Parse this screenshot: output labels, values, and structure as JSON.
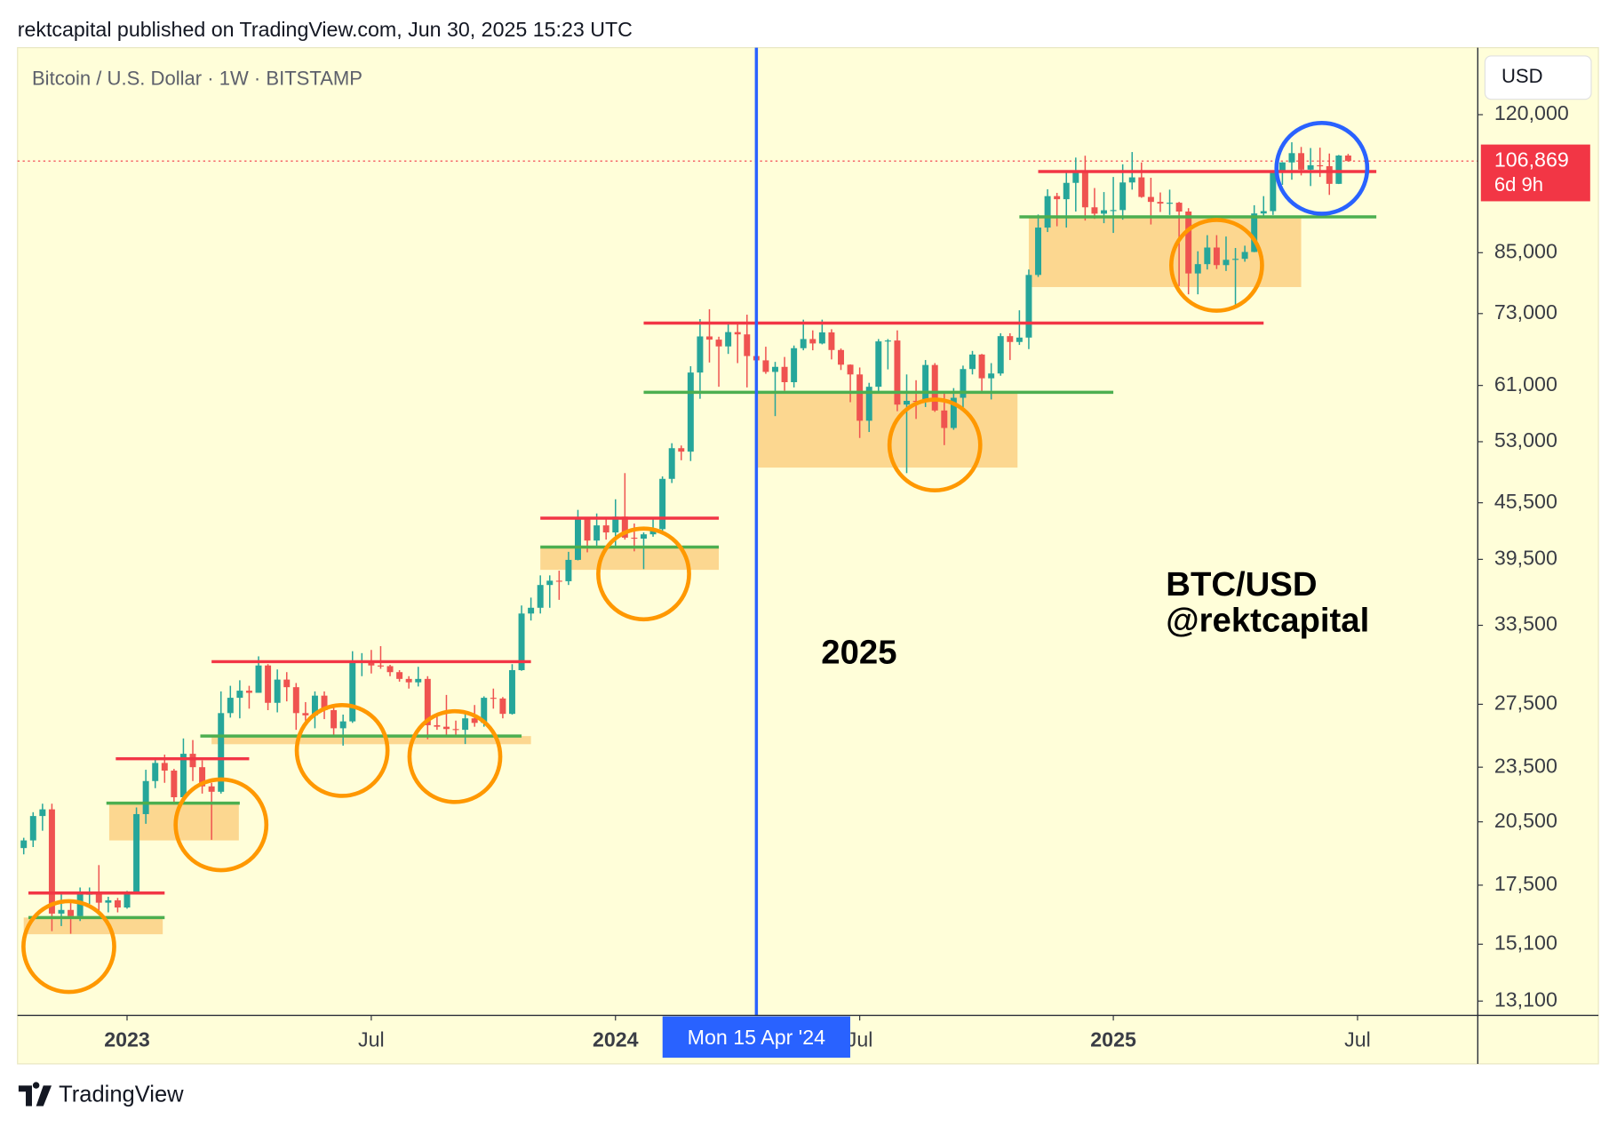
{
  "header": {
    "text": "rektcapital published on TradingView.com, Jun 30, 2025 15:23 UTC"
  },
  "footer": {
    "brand": "TradingView"
  },
  "chart_data": {
    "type": "candlestick",
    "title": "Bitcoin / U.S. Dollar · 1W · BITSTAMP",
    "currency": "USD",
    "log_scale": true,
    "up_color": "#26a69a",
    "down_color": "#ef5350",
    "candles": [
      [
        19200,
        19700,
        18900,
        19570
      ],
      [
        19570,
        21000,
        19250,
        20800
      ],
      [
        20800,
        21450,
        20050,
        21150
      ],
      [
        21150,
        21450,
        15600,
        16300
      ],
      [
        16300,
        17200,
        15800,
        16450
      ],
      [
        16450,
        16800,
        15500,
        16200
      ],
      [
        16200,
        17400,
        16000,
        17100
      ],
      [
        17100,
        17400,
        16700,
        17130
      ],
      [
        17130,
        18400,
        16300,
        16750
      ],
      [
        16750,
        17000,
        16350,
        16850
      ],
      [
        16850,
        16950,
        16350,
        16550
      ],
      [
        16550,
        17250,
        16500,
        17150
      ],
      [
        17150,
        21250,
        17100,
        20900
      ],
      [
        20900,
        23350,
        20400,
        22700
      ],
      [
        22700,
        23950,
        22300,
        23750
      ],
      [
        23750,
        24250,
        22600,
        23300
      ],
      [
        23300,
        23400,
        21400,
        21800
      ],
      [
        21800,
        25250,
        21550,
        24300
      ],
      [
        24300,
        25150,
        22700,
        23500
      ],
      [
        23500,
        23900,
        22000,
        22400
      ],
      [
        22400,
        22600,
        19600,
        22100
      ],
      [
        22100,
        28400,
        22000,
        26900
      ],
      [
        26900,
        28800,
        26600,
        27950
      ],
      [
        27950,
        29200,
        26550,
        28450
      ],
      [
        28450,
        28800,
        27200,
        28300
      ],
      [
        28300,
        31000,
        28300,
        30300
      ],
      [
        30300,
        30400,
        27100,
        27600
      ],
      [
        27600,
        30000,
        26950,
        29250
      ],
      [
        29250,
        29800,
        27700,
        28700
      ],
      [
        28700,
        29000,
        25800,
        26900
      ],
      [
        26900,
        27650,
        26400,
        26750
      ],
      [
        26750,
        28400,
        25900,
        28100
      ],
      [
        28100,
        28400,
        26500,
        27100
      ],
      [
        27100,
        27400,
        25400,
        25900
      ],
      [
        25900,
        26800,
        24800,
        26350
      ],
      [
        26350,
        31400,
        26250,
        30500
      ],
      [
        30500,
        31250,
        29500,
        30600
      ],
      [
        30600,
        31500,
        29700,
        30300
      ],
      [
        30300,
        31800,
        30050,
        30250
      ],
      [
        30250,
        30350,
        29500,
        29800
      ],
      [
        29800,
        29950,
        29100,
        29300
      ],
      [
        29300,
        29500,
        28600,
        29050
      ],
      [
        29050,
        30200,
        28750,
        29300
      ],
      [
        29300,
        29500,
        25200,
        26100
      ],
      [
        26100,
        26800,
        25800,
        26000
      ],
      [
        26000,
        28150,
        25350,
        25850
      ],
      [
        25850,
        26400,
        25400,
        25800
      ],
      [
        25800,
        26850,
        24900,
        26550
      ],
      [
        26550,
        27450,
        26000,
        26250
      ],
      [
        26250,
        28050,
        26000,
        27950
      ],
      [
        27950,
        28600,
        27200,
        27900
      ],
      [
        27900,
        28000,
        26550,
        26850
      ],
      [
        26850,
        30400,
        26800,
        29950
      ],
      [
        29950,
        35200,
        29900,
        34500
      ],
      [
        34500,
        35900,
        33900,
        35000
      ],
      [
        35000,
        37950,
        34500,
        37050
      ],
      [
        37050,
        37950,
        35000,
        37450
      ],
      [
        37450,
        38400,
        35700,
        37400
      ],
      [
        37400,
        40250,
        37050,
        39450
      ],
      [
        39450,
        44700,
        39400,
        43800
      ],
      [
        43800,
        43800,
        40200,
        41400
      ],
      [
        41400,
        44300,
        40600,
        43000
      ],
      [
        43000,
        43900,
        41500,
        42250
      ],
      [
        42250,
        45900,
        40750,
        43950
      ],
      [
        43950,
        49000,
        41500,
        41700
      ],
      [
        41700,
        43200,
        40300,
        41600
      ],
      [
        41600,
        42250,
        38550,
        42050
      ],
      [
        42050,
        43850,
        41800,
        42600
      ],
      [
        42600,
        48600,
        42300,
        48300
      ],
      [
        48300,
        52800,
        47800,
        52150
      ],
      [
        52150,
        52500,
        50600,
        51700
      ],
      [
        51700,
        64000,
        50500,
        63000
      ],
      [
        63000,
        72000,
        59000,
        68950
      ],
      [
        68950,
        73800,
        64600,
        68400
      ],
      [
        68400,
        68900,
        60800,
        67250
      ],
      [
        67250,
        71500,
        66000,
        69700
      ],
      [
        69700,
        71300,
        64500,
        69300
      ],
      [
        69300,
        72800,
        60700,
        65650
      ],
      [
        65650,
        66800,
        59600,
        64950
      ],
      [
        64950,
        67200,
        62800,
        63100
      ],
      [
        63100,
        64700,
        56500,
        63900
      ],
      [
        63900,
        65500,
        60200,
        61500
      ],
      [
        61500,
        67400,
        60700,
        66950
      ],
      [
        66950,
        71900,
        66600,
        68500
      ],
      [
        68500,
        70000,
        66600,
        67750
      ],
      [
        67750,
        71900,
        67600,
        69650
      ],
      [
        69650,
        70200,
        65100,
        66650
      ],
      [
        66650,
        66900,
        63400,
        64250
      ],
      [
        64250,
        64300,
        58500,
        62700
      ],
      [
        62700,
        63800,
        53500,
        55850
      ],
      [
        55850,
        61400,
        54300,
        60800
      ],
      [
        60800,
        68500,
        59800,
        68100
      ],
      [
        68100,
        68500,
        63500,
        68250
      ],
      [
        68250,
        70000,
        57200,
        58150
      ],
      [
        58150,
        62700,
        49000,
        58700
      ],
      [
        58700,
        61800,
        56100,
        58650
      ],
      [
        58650,
        65000,
        57800,
        64200
      ],
      [
        64200,
        64500,
        57100,
        57300
      ],
      [
        57300,
        59800,
        52550,
        54850
      ],
      [
        54850,
        60600,
        54600,
        59150
      ],
      [
        59150,
        64100,
        57500,
        63550
      ],
      [
        63550,
        66500,
        62700,
        65900
      ],
      [
        65900,
        66000,
        59800,
        62100
      ],
      [
        62100,
        64500,
        58900,
        62850
      ],
      [
        62850,
        69500,
        62500,
        69000
      ],
      [
        69000,
        69500,
        65000,
        68000
      ],
      [
        68000,
        73600,
        67500,
        68750
      ],
      [
        68750,
        81500,
        66800,
        80400
      ],
      [
        80400,
        93500,
        80000,
        90500
      ],
      [
        90500,
        99600,
        89500,
        97900
      ],
      [
        97900,
        98700,
        90800,
        97150
      ],
      [
        97150,
        104000,
        90500,
        101200
      ],
      [
        101200,
        107800,
        94200,
        104400
      ],
      [
        104400,
        108300,
        92100,
        95200
      ],
      [
        95200,
        99900,
        92500,
        93700
      ],
      [
        93700,
        98900,
        91500,
        94500
      ],
      [
        94500,
        102700,
        89300,
        94550
      ],
      [
        94550,
        106000,
        92300,
        101300
      ],
      [
        101300,
        109300,
        99500,
        102600
      ],
      [
        102600,
        106500,
        97500,
        97700
      ],
      [
        97700,
        102500,
        91200,
        96500
      ],
      [
        96500,
        98800,
        94100,
        96100
      ],
      [
        96100,
        99500,
        93400,
        96300
      ],
      [
        96300,
        96500,
        78200,
        94200
      ],
      [
        94200,
        95000,
        76600,
        80700
      ],
      [
        80700,
        85300,
        76600,
        82600
      ],
      [
        82600,
        88800,
        81500,
        86100
      ],
      [
        86100,
        88800,
        81600,
        82400
      ],
      [
        82400,
        88500,
        81200,
        83500
      ],
      [
        83500,
        86000,
        74400,
        83700
      ],
      [
        83700,
        86500,
        83100,
        85150
      ],
      [
        85150,
        95700,
        85100,
        93750
      ],
      [
        93750,
        97900,
        92800,
        94300
      ],
      [
        94300,
        104400,
        93400,
        104000
      ],
      [
        104000,
        106600,
        100700,
        106500
      ],
      [
        106500,
        112000,
        102000,
        109000
      ],
      [
        109000,
        110700,
        103100,
        104600
      ],
      [
        104600,
        110400,
        100400,
        105750
      ],
      [
        105750,
        110500,
        102700,
        105500
      ],
      [
        105500,
        108900,
        98200,
        100950
      ],
      [
        100950,
        108500,
        100900,
        108350
      ],
      [
        108350,
        108800,
        106700,
        106869
      ]
    ],
    "xlim": [
      -0.66,
      154.8
    ],
    "xticks": [
      {
        "value": 11,
        "label": "2023"
      },
      {
        "value": 37,
        "label": "Jul"
      },
      {
        "value": 63,
        "label": "2024"
      },
      {
        "value": 89,
        "label": "Jul"
      },
      {
        "value": 116,
        "label": "2025"
      },
      {
        "value": 142,
        "label": "Jul"
      }
    ],
    "ylim": [
      12640,
      141500
    ],
    "yticks": [
      {
        "value": 120000,
        "label": "120,000"
      },
      {
        "value": 85000,
        "label": "85,000"
      },
      {
        "value": 73000,
        "label": "73,000"
      },
      {
        "value": 61000,
        "label": "61,000"
      },
      {
        "value": 53000,
        "label": "53,000"
      },
      {
        "value": 45500,
        "label": "45,500"
      },
      {
        "value": 39500,
        "label": "39,500"
      },
      {
        "value": 33500,
        "label": "33,500"
      },
      {
        "value": 27500,
        "label": "27,500"
      },
      {
        "value": 23500,
        "label": "23,500"
      },
      {
        "value": 20500,
        "label": "20,500"
      },
      {
        "value": 17500,
        "label": "17,500"
      },
      {
        "value": 15100,
        "label": "15,100"
      },
      {
        "value": 13100,
        "label": "13,100"
      }
    ],
    "last_price": {
      "value": 106869,
      "label": "106,869",
      "countdown": "6d 9h",
      "color": "#f23645"
    },
    "crosshair": {
      "x": 78,
      "label": "Mon 15 Apr '24",
      "color": "#2962ff"
    },
    "levels": [
      {
        "value": 17160,
        "from": 0.5,
        "to": 15,
        "color": "#f23645"
      },
      {
        "value": 24000,
        "from": 9.8,
        "to": 24,
        "color": "#f23645"
      },
      {
        "value": 30590,
        "from": 20,
        "to": 54,
        "color": "#f23645"
      },
      {
        "value": 43780,
        "from": 55,
        "to": 74,
        "color": "#f23645"
      },
      {
        "value": 71280,
        "from": 66,
        "to": 132,
        "color": "#f23645"
      },
      {
        "value": 104100,
        "from": 108,
        "to": 144,
        "color": "#f23645"
      },
      {
        "value": 16140,
        "from": 0.5,
        "to": 15,
        "color": "#4caf50"
      },
      {
        "value": 21480,
        "from": 8.8,
        "to": 23,
        "color": "#4caf50"
      },
      {
        "value": 25400,
        "from": 18.8,
        "to": 53,
        "color": "#4caf50"
      },
      {
        "value": 40730,
        "from": 55,
        "to": 74,
        "color": "#4caf50"
      },
      {
        "value": 59970,
        "from": 66,
        "to": 116,
        "color": "#4caf50"
      },
      {
        "value": 92960,
        "from": 106,
        "to": 144,
        "color": "#4caf50"
      }
    ],
    "zones": [
      {
        "low": 15480,
        "high": 16140,
        "from": 0,
        "to": 14.8,
        "color": "#fcd790"
      },
      {
        "low": 19570,
        "high": 21480,
        "from": 9.1,
        "to": 22.9,
        "color": "#fcd790"
      },
      {
        "low": 24890,
        "high": 25400,
        "from": 20,
        "to": 54,
        "color": "#fcd790"
      },
      {
        "low": 38480,
        "high": 40730,
        "from": 55,
        "to": 74,
        "color": "#fcd790"
      },
      {
        "low": 49680,
        "high": 59970,
        "from": 78,
        "to": 105.8,
        "color": "#fcd790"
      },
      {
        "low": 78000,
        "high": 92960,
        "from": 107,
        "to": 136,
        "color": "#fcd790"
      }
    ],
    "circles": [
      {
        "x": 4.8,
        "y": 15010,
        "color": "#ff9800"
      },
      {
        "x": 21,
        "y": 20350,
        "color": "#ff9800"
      },
      {
        "x": 33.9,
        "y": 24500,
        "color": "#ff9800"
      },
      {
        "x": 45.9,
        "y": 24130,
        "color": "#ff9800"
      },
      {
        "x": 66,
        "y": 38090,
        "color": "#ff9800"
      },
      {
        "x": 97,
        "y": 52570,
        "color": "#ff9800"
      },
      {
        "x": 127,
        "y": 82360,
        "color": "#ff9800"
      },
      {
        "x": 138.2,
        "y": 104940,
        "color": "#2962ff"
      }
    ],
    "annotations": [
      {
        "text": "2025",
        "x": 84.9,
        "y": 31150
      },
      {
        "text": "BTC/USD",
        "x": 121.6,
        "y": 36920
      },
      {
        "text": "@rektcapital",
        "x": 121.6,
        "y": 33740
      }
    ]
  }
}
